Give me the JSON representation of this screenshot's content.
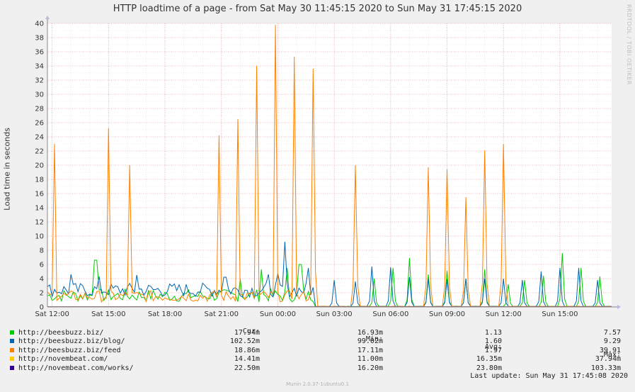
{
  "chart_data": {
    "type": "line",
    "title": "HTTP loadtime of a page - from Sat May 30 11:45:15 2020 to Sun May 31 17:45:15 2020",
    "ylabel": "Load time in seconds",
    "ylim": [
      0,
      40
    ],
    "yticks": [
      0,
      2,
      4,
      6,
      8,
      10,
      12,
      14,
      16,
      18,
      20,
      22,
      24,
      26,
      28,
      30,
      32,
      34,
      36,
      38,
      40
    ],
    "xlim_hours": [
      11.75,
      41.75
    ],
    "xticks": [
      {
        "label": "Sat 12:00",
        "hour": 12
      },
      {
        "label": "Sat 15:00",
        "hour": 15
      },
      {
        "label": "Sat 18:00",
        "hour": 18
      },
      {
        "label": "Sat 21:00",
        "hour": 21
      },
      {
        "label": "Sun 00:00",
        "hour": 24
      },
      {
        "label": "Sun 03:00",
        "hour": 27
      },
      {
        "label": "Sun 06:00",
        "hour": 30
      },
      {
        "label": "Sun 09:00",
        "hour": 33
      },
      {
        "label": "Sun 12:00",
        "hour": 36
      },
      {
        "label": "Sun 15:00",
        "hour": 39
      }
    ],
    "grid": true,
    "legend_position": "bottom",
    "series": [
      {
        "name": "http://beesbuzz.biz/",
        "color": "#00cc00",
        "spikes": [
          [
            14.3,
            6.6
          ],
          [
            22.0,
            4.0
          ],
          [
            23.1,
            5.3
          ],
          [
            24.5,
            5.5
          ],
          [
            25.2,
            6.0
          ],
          [
            29.1,
            4.0
          ],
          [
            30.1,
            5.5
          ],
          [
            31.0,
            6.9
          ],
          [
            32.0,
            4.6
          ],
          [
            33.0,
            5.1
          ],
          [
            34.0,
            4.0
          ],
          [
            35.0,
            5.3
          ],
          [
            36.2,
            3.2
          ],
          [
            37.1,
            3.8
          ],
          [
            38.1,
            4.4
          ],
          [
            39.1,
            7.6
          ],
          [
            40.1,
            5.5
          ],
          [
            41.1,
            4.3
          ]
        ]
      },
      {
        "name": "http://beesbuzz.biz/blog/",
        "color": "#0066b3",
        "spikes": [
          [
            13.0,
            4.6
          ],
          [
            14.5,
            4.3
          ],
          [
            16.5,
            4.5
          ],
          [
            21.2,
            4.2
          ],
          [
            23.5,
            4.6
          ],
          [
            24.0,
            4.7
          ],
          [
            24.4,
            9.2
          ],
          [
            25.6,
            5.5
          ],
          [
            27.0,
            3.8
          ],
          [
            28.1,
            3.6
          ],
          [
            29.0,
            5.7
          ],
          [
            30.0,
            5.6
          ],
          [
            31.0,
            4.2
          ],
          [
            32.0,
            4.0
          ],
          [
            33.0,
            3.9
          ],
          [
            34.0,
            4.0
          ],
          [
            35.0,
            4.0
          ],
          [
            36.0,
            4.0
          ],
          [
            37.0,
            3.8
          ],
          [
            38.0,
            5.0
          ],
          [
            39.0,
            5.5
          ],
          [
            40.0,
            5.5
          ],
          [
            41.0,
            3.8
          ]
        ]
      },
      {
        "name": "http://beesbuzz.biz/feed",
        "color": "#ff8000",
        "spikes": [
          [
            12.1,
            23.0
          ],
          [
            15.0,
            25.2
          ],
          [
            16.1,
            20.0
          ],
          [
            20.9,
            24.2
          ],
          [
            21.9,
            26.5
          ],
          [
            22.9,
            34.0
          ],
          [
            23.9,
            39.8
          ],
          [
            24.9,
            35.3
          ],
          [
            25.9,
            33.6
          ],
          [
            28.1,
            20.0
          ],
          [
            32.0,
            19.7
          ],
          [
            33.0,
            19.4
          ],
          [
            34.0,
            15.5
          ],
          [
            35.0,
            22.1
          ],
          [
            36.0,
            23.0
          ]
        ]
      },
      {
        "name": "http://novembeat.com/",
        "color": "#ffcc00",
        "spikes": []
      },
      {
        "name": "http://novembeat.com/works/",
        "color": "#330099",
        "spikes": []
      }
    ]
  },
  "legend": {
    "headers": {
      "cur": "Cur:",
      "min": "Min:",
      "avg": "Avg:",
      "max": "Max:"
    },
    "rows": [
      {
        "name": "http://beesbuzz.biz/",
        "color": "#00cc00",
        "cur": "17.94m",
        "min": "16.93m",
        "avg": "1.13",
        "max": "7.57"
      },
      {
        "name": "http://beesbuzz.biz/blog/",
        "color": "#0066b3",
        "cur": "102.52m",
        "min": "99.02m",
        "avg": "1.60",
        "max": "9.29"
      },
      {
        "name": "http://beesbuzz.biz/feed",
        "color": "#ff8000",
        "cur": "18.86m",
        "min": "17.11m",
        "avg": "1.97",
        "max": "39.91"
      },
      {
        "name": "http://novembeat.com/",
        "color": "#ffcc00",
        "cur": "14.41m",
        "min": "11.00m",
        "avg": "16.35m",
        "max": "37.94m"
      },
      {
        "name": "http://novembeat.com/works/",
        "color": "#330099",
        "cur": "22.50m",
        "min": "16.20m",
        "avg": "23.80m",
        "max": "103.33m"
      }
    ]
  },
  "last_update": "Last update: Sun May 31 17:45:08 2020",
  "rrdtool_text": "RRDTOOL / TOBI OETIKER",
  "munin_version": "Munin 2.0.37-1ubuntu0.1"
}
